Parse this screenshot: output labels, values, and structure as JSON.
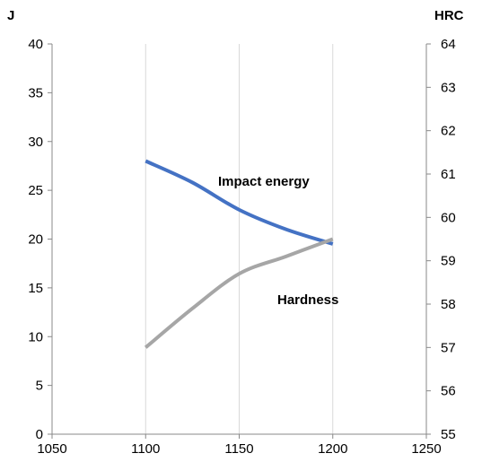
{
  "chart_data": {
    "type": "line",
    "x": [
      1100,
      1150,
      1200
    ],
    "xlim": [
      1050,
      1250
    ],
    "x_ticks": [
      "1050",
      "1100",
      "1150",
      "1200",
      "1250"
    ],
    "x_tick_values": [
      1050,
      1100,
      1150,
      1200,
      1250
    ],
    "left_axis": {
      "unit": "J",
      "ylim": [
        0,
        40
      ],
      "ticks": [
        "0",
        "5",
        "10",
        "15",
        "20",
        "25",
        "30",
        "35",
        "40"
      ],
      "tick_values": [
        0,
        5,
        10,
        15,
        20,
        25,
        30,
        35,
        40
      ]
    },
    "right_axis": {
      "unit": "HRC",
      "ylim": [
        55,
        64
      ],
      "ticks": [
        "55",
        "56",
        "57",
        "58",
        "59",
        "60",
        "61",
        "62",
        "63",
        "64"
      ],
      "tick_values": [
        55,
        56,
        57,
        58,
        59,
        60,
        61,
        62,
        63,
        64
      ]
    },
    "grid": "vertical",
    "series": [
      {
        "name": "Impact energy",
        "axis": "left",
        "color": "#4472c4",
        "x": [
          1100,
          1125,
          1150,
          1175,
          1200
        ],
        "values": [
          28,
          25.8,
          23.0,
          21.0,
          19.5
        ]
      },
      {
        "name": "Hardness",
        "axis": "right",
        "color": "#a6a6a6",
        "x": [
          1100,
          1125,
          1150,
          1175,
          1200
        ],
        "values": [
          57.0,
          57.9,
          58.7,
          59.1,
          59.5
        ]
      }
    ]
  }
}
